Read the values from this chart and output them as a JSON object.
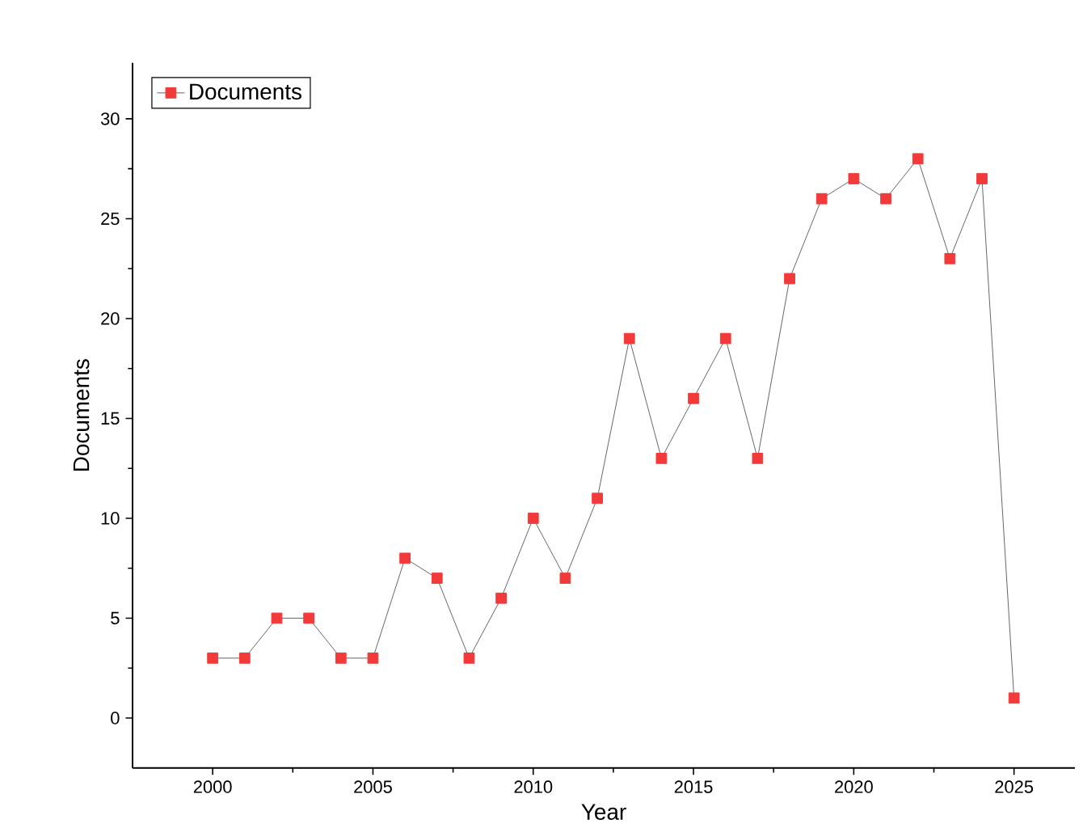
{
  "chart_data": {
    "type": "line",
    "xlabel": "Year",
    "ylabel": "Documents",
    "x": [
      2000,
      2001,
      2002,
      2003,
      2004,
      2005,
      2006,
      2007,
      2008,
      2009,
      2010,
      2011,
      2012,
      2013,
      2014,
      2015,
      2016,
      2017,
      2018,
      2019,
      2020,
      2021,
      2022,
      2023,
      2024,
      2025
    ],
    "series": [
      {
        "name": "Documents",
        "color": "#f23a3a",
        "values": [
          3,
          3,
          5,
          5,
          3,
          3,
          8,
          7,
          3,
          6,
          10,
          7,
          11,
          19,
          13,
          16,
          19,
          13,
          22,
          26,
          27,
          26,
          28,
          23,
          27,
          1
        ]
      }
    ],
    "xlim": [
      1997.5,
      2026.9
    ],
    "ylim": [
      -2.5,
      32.8
    ],
    "xticks": [
      2000,
      2005,
      2010,
      2015,
      2020,
      2025
    ],
    "yticks": [
      0,
      5,
      10,
      15,
      20,
      25,
      30
    ],
    "marker": "square",
    "line_style": "solid",
    "legend": "top left",
    "grid": false
  }
}
